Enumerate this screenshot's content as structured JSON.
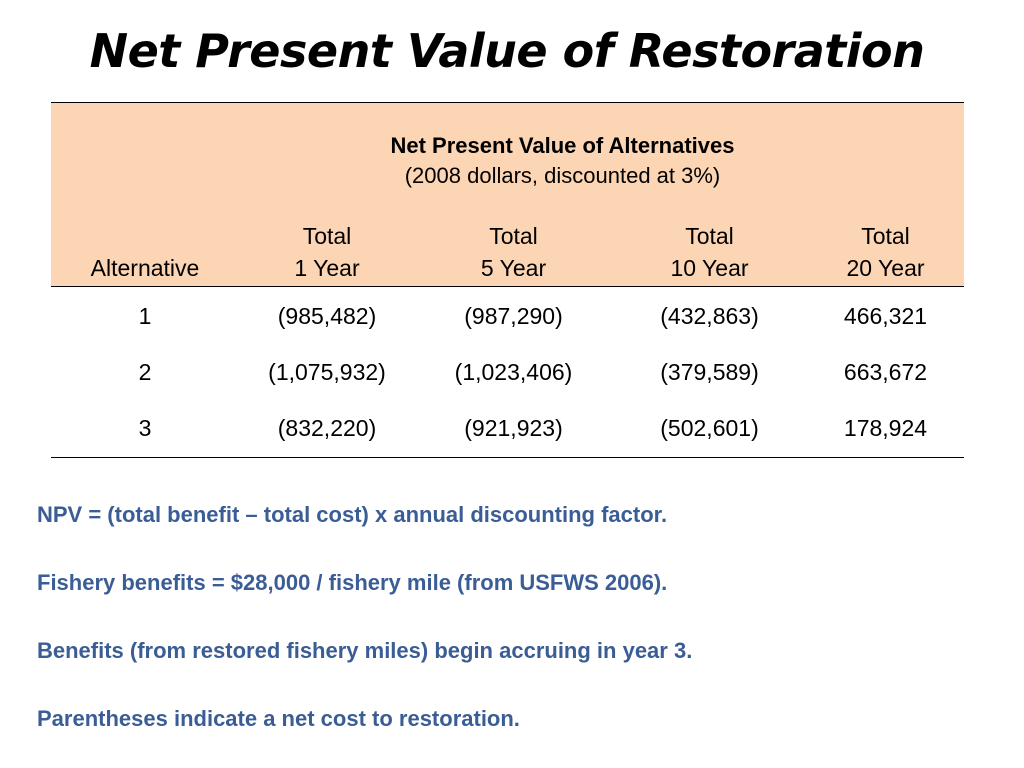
{
  "title": "Net Present Value of Restoration",
  "table": {
    "caption_title": "Net Present Value of Alternatives",
    "caption_subtitle": "(2008 dollars, discounted at 3%)",
    "columns": [
      {
        "line1": "",
        "line2": "Alternative"
      },
      {
        "line1": "Total",
        "line2": "1 Year"
      },
      {
        "line1": "Total",
        "line2": "5 Year"
      },
      {
        "line1": "Total",
        "line2": "10 Year"
      },
      {
        "line1": "Total",
        "line2": "20 Year"
      }
    ],
    "rows": [
      [
        "1",
        "(985,482)",
        "(987,290)",
        "(432,863)",
        "466,321"
      ],
      [
        "2",
        "(1,075,932)",
        "(1,023,406)",
        "(379,589)",
        "663,672"
      ],
      [
        "3",
        "(832,220)",
        "(921,923)",
        "(502,601)",
        "178,924"
      ]
    ],
    "header_color": "#fcd5b4"
  },
  "notes": [
    "NPV = (total benefit – total cost) x annual discounting factor.",
    "Fishery benefits = $28,000 / fishery mile (from USFWS 2006).",
    "Benefits (from restored fishery miles) begin accruing in year 3.",
    "Parentheses indicate a net cost to restoration."
  ],
  "colors": {
    "notes_text": "#3b5d96"
  }
}
